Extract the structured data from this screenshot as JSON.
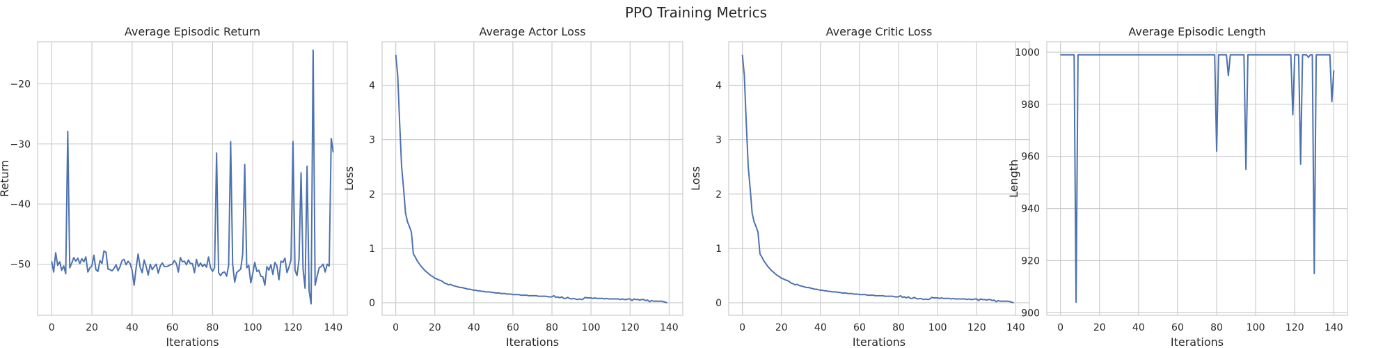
{
  "figure": {
    "title": "PPO Training Metrics"
  },
  "colors": {
    "series": "#4c72b0",
    "grid": "#cccccc",
    "text": "#262626"
  },
  "chart_data": [
    {
      "type": "line",
      "title": "Average Episodic Return",
      "xlabel": "Iterations",
      "ylabel": "Return",
      "xlim": [
        -7,
        147
      ],
      "ylim": [
        -58.5,
        -13
      ],
      "xticks": [
        0,
        20,
        40,
        60,
        80,
        100,
        120,
        140
      ],
      "yticks": [
        -50,
        -40,
        -30,
        -20
      ],
      "grid": true,
      "series": [
        {
          "values": [
            -49.5,
            -51.3,
            -48.1,
            -50.2,
            -49.6,
            -51.0,
            -50.3,
            -51.6,
            -27.9,
            -50.6,
            -49.8,
            -48.9,
            -49.5,
            -49.0,
            -49.9,
            -49.1,
            -49.6,
            -48.8,
            -51.3,
            -50.6,
            -50.3,
            -48.5,
            -50.9,
            -51.2,
            -49.4,
            -49.9,
            -47.8,
            -48.0,
            -50.8,
            -50.9,
            -51.1,
            -50.7,
            -50.1,
            -51.1,
            -50.4,
            -49.4,
            -49.2,
            -50.1,
            -49.5,
            -49.9,
            -51.0,
            -53.5,
            -50.6,
            -48.3,
            -50.5,
            -51.4,
            -49.3,
            -50.4,
            -51.8,
            -50.0,
            -50.9,
            -50.4,
            -50.0,
            -51.5,
            -50.3,
            -49.8,
            -50.4,
            -50.4,
            -50.3,
            -50.1,
            -50.0,
            -49.4,
            -49.9,
            -51.3,
            -48.9,
            -49.6,
            -49.5,
            -50.1,
            -49.3,
            -49.9,
            -49.9,
            -51.4,
            -49.2,
            -50.4,
            -49.8,
            -50.4,
            -50.0,
            -50.5,
            -48.8,
            -50.6,
            -51.2,
            -50.6,
            -31.5,
            -51.4,
            -51.9,
            -51.4,
            -51.3,
            -52.0,
            -50.2,
            -29.6,
            -50.0,
            -53.0,
            -51.4,
            -51.1,
            -50.8,
            -48.3,
            -33.4,
            -50.6,
            -50.2,
            -53.1,
            -51.5,
            -49.7,
            -51.2,
            -51.0,
            -52.0,
            -52.1,
            -53.5,
            -50.4,
            -51.0,
            -50.1,
            -51.7,
            -49.7,
            -50.3,
            -52.6,
            -49.5,
            -49.7,
            -49.0,
            -51.4,
            -50.5,
            -49.3,
            -29.6,
            -51.0,
            -51.9,
            -49.2,
            -34.8,
            -50.8,
            -54.0,
            -33.7,
            -54.4,
            -56.6,
            -14.4,
            -53.5,
            -52.0,
            -50.6,
            -50.4,
            -50.0,
            -51.3,
            -50.0,
            -50.3,
            -29.1,
            -31.4
          ]
        }
      ]
    },
    {
      "type": "line",
      "title": "Average Actor Loss",
      "xlabel": "Iterations",
      "ylabel": "Loss",
      "xlim": [
        -7,
        147
      ],
      "ylim": [
        -0.23,
        4.8
      ],
      "xticks": [
        0,
        20,
        40,
        60,
        80,
        100,
        120,
        140
      ],
      "yticks": [
        0,
        1,
        2,
        3,
        4
      ],
      "grid": true,
      "series": [
        {
          "values": [
            4.56,
            4.18,
            3.3,
            2.5,
            2.1,
            1.65,
            1.49,
            1.4,
            1.3,
            0.9,
            0.84,
            0.77,
            0.72,
            0.67,
            0.63,
            0.59,
            0.56,
            0.53,
            0.5,
            0.48,
            0.45,
            0.44,
            0.42,
            0.41,
            0.39,
            0.36,
            0.35,
            0.33,
            0.34,
            0.32,
            0.31,
            0.3,
            0.29,
            0.28,
            0.28,
            0.27,
            0.26,
            0.25,
            0.25,
            0.24,
            0.23,
            0.23,
            0.22,
            0.22,
            0.21,
            0.21,
            0.2,
            0.2,
            0.2,
            0.19,
            0.19,
            0.18,
            0.18,
            0.18,
            0.17,
            0.17,
            0.17,
            0.16,
            0.16,
            0.16,
            0.15,
            0.15,
            0.15,
            0.15,
            0.14,
            0.14,
            0.14,
            0.14,
            0.13,
            0.13,
            0.13,
            0.13,
            0.13,
            0.12,
            0.12,
            0.12,
            0.12,
            0.12,
            0.11,
            0.11,
            0.11,
            0.13,
            0.1,
            0.11,
            0.09,
            0.11,
            0.08,
            0.08,
            0.1,
            0.08,
            0.07,
            0.08,
            0.07,
            0.06,
            0.07,
            0.06,
            0.07,
            0.1,
            0.09,
            0.09,
            0.09,
            0.08,
            0.09,
            0.08,
            0.08,
            0.08,
            0.08,
            0.07,
            0.08,
            0.07,
            0.07,
            0.07,
            0.07,
            0.07,
            0.07,
            0.06,
            0.07,
            0.06,
            0.06,
            0.07,
            0.07,
            0.04,
            0.07,
            0.06,
            0.06,
            0.05,
            0.06,
            0.06,
            0.04,
            0.05,
            0.02,
            0.04,
            0.03,
            0.03,
            0.03,
            0.03,
            0.03,
            0.02,
            0.01,
            0.0
          ]
        }
      ]
    },
    {
      "type": "line",
      "title": "Average Critic Loss",
      "xlabel": "Iterations",
      "ylabel": "Loss",
      "xlim": [
        -7,
        147
      ],
      "ylim": [
        -0.23,
        4.8
      ],
      "xticks": [
        0,
        20,
        40,
        60,
        80,
        100,
        120,
        140
      ],
      "yticks": [
        0,
        1,
        2,
        3,
        4
      ],
      "grid": true,
      "series": [
        {
          "values": [
            4.56,
            4.18,
            3.3,
            2.5,
            2.1,
            1.65,
            1.49,
            1.4,
            1.3,
            0.9,
            0.84,
            0.77,
            0.72,
            0.67,
            0.63,
            0.59,
            0.56,
            0.53,
            0.5,
            0.48,
            0.45,
            0.44,
            0.42,
            0.41,
            0.39,
            0.36,
            0.35,
            0.33,
            0.34,
            0.32,
            0.31,
            0.3,
            0.29,
            0.28,
            0.28,
            0.27,
            0.26,
            0.25,
            0.25,
            0.24,
            0.23,
            0.23,
            0.22,
            0.22,
            0.21,
            0.21,
            0.2,
            0.2,
            0.2,
            0.19,
            0.19,
            0.18,
            0.18,
            0.18,
            0.17,
            0.17,
            0.17,
            0.16,
            0.16,
            0.16,
            0.15,
            0.15,
            0.15,
            0.15,
            0.14,
            0.14,
            0.14,
            0.14,
            0.13,
            0.13,
            0.13,
            0.13,
            0.13,
            0.12,
            0.12,
            0.12,
            0.12,
            0.12,
            0.11,
            0.11,
            0.11,
            0.13,
            0.1,
            0.11,
            0.09,
            0.11,
            0.08,
            0.08,
            0.1,
            0.08,
            0.07,
            0.08,
            0.07,
            0.06,
            0.07,
            0.06,
            0.07,
            0.1,
            0.09,
            0.09,
            0.09,
            0.08,
            0.09,
            0.08,
            0.08,
            0.08,
            0.08,
            0.07,
            0.08,
            0.07,
            0.07,
            0.07,
            0.07,
            0.07,
            0.07,
            0.06,
            0.07,
            0.06,
            0.06,
            0.07,
            0.07,
            0.04,
            0.07,
            0.06,
            0.06,
            0.05,
            0.06,
            0.06,
            0.04,
            0.05,
            0.02,
            0.04,
            0.03,
            0.03,
            0.03,
            0.03,
            0.03,
            0.02,
            0.01,
            0.0
          ]
        }
      ]
    },
    {
      "type": "line",
      "title": "Average Episodic Length",
      "xlabel": "Iterations",
      "ylabel": "Length",
      "xlim": [
        -7,
        147
      ],
      "ylim": [
        899,
        1004
      ],
      "xticks": [
        0,
        20,
        40,
        60,
        80,
        100,
        120,
        140
      ],
      "yticks": [
        900,
        920,
        940,
        960,
        980,
        1000
      ],
      "grid": true,
      "series": [
        {
          "values": [
            999,
            999,
            999,
            999,
            999,
            999,
            999,
            999,
            904,
            999,
            999,
            999,
            999,
            999,
            999,
            999,
            999,
            999,
            999,
            999,
            999,
            999,
            999,
            999,
            999,
            999,
            999,
            999,
            999,
            999,
            999,
            999,
            999,
            999,
            999,
            999,
            999,
            999,
            999,
            999,
            999,
            999,
            999,
            999,
            999,
            999,
            999,
            999,
            999,
            999,
            999,
            999,
            999,
            999,
            999,
            999,
            999,
            999,
            999,
            999,
            999,
            999,
            999,
            999,
            999,
            999,
            999,
            999,
            999,
            999,
            999,
            999,
            999,
            999,
            999,
            999,
            999,
            999,
            999,
            999,
            962,
            999,
            999,
            999,
            999,
            999,
            991,
            999,
            999,
            999,
            999,
            999,
            999,
            999,
            999,
            955,
            999,
            999,
            999,
            999,
            999,
            999,
            999,
            999,
            999,
            999,
            999,
            999,
            999,
            999,
            999,
            999,
            999,
            999,
            999,
            999,
            999,
            999,
            999,
            976,
            999,
            999,
            999,
            957,
            999,
            999,
            999,
            998,
            999,
            999,
            915,
            999,
            999,
            999,
            999,
            999,
            999,
            999,
            999,
            981,
            993
          ]
        }
      ]
    }
  ]
}
